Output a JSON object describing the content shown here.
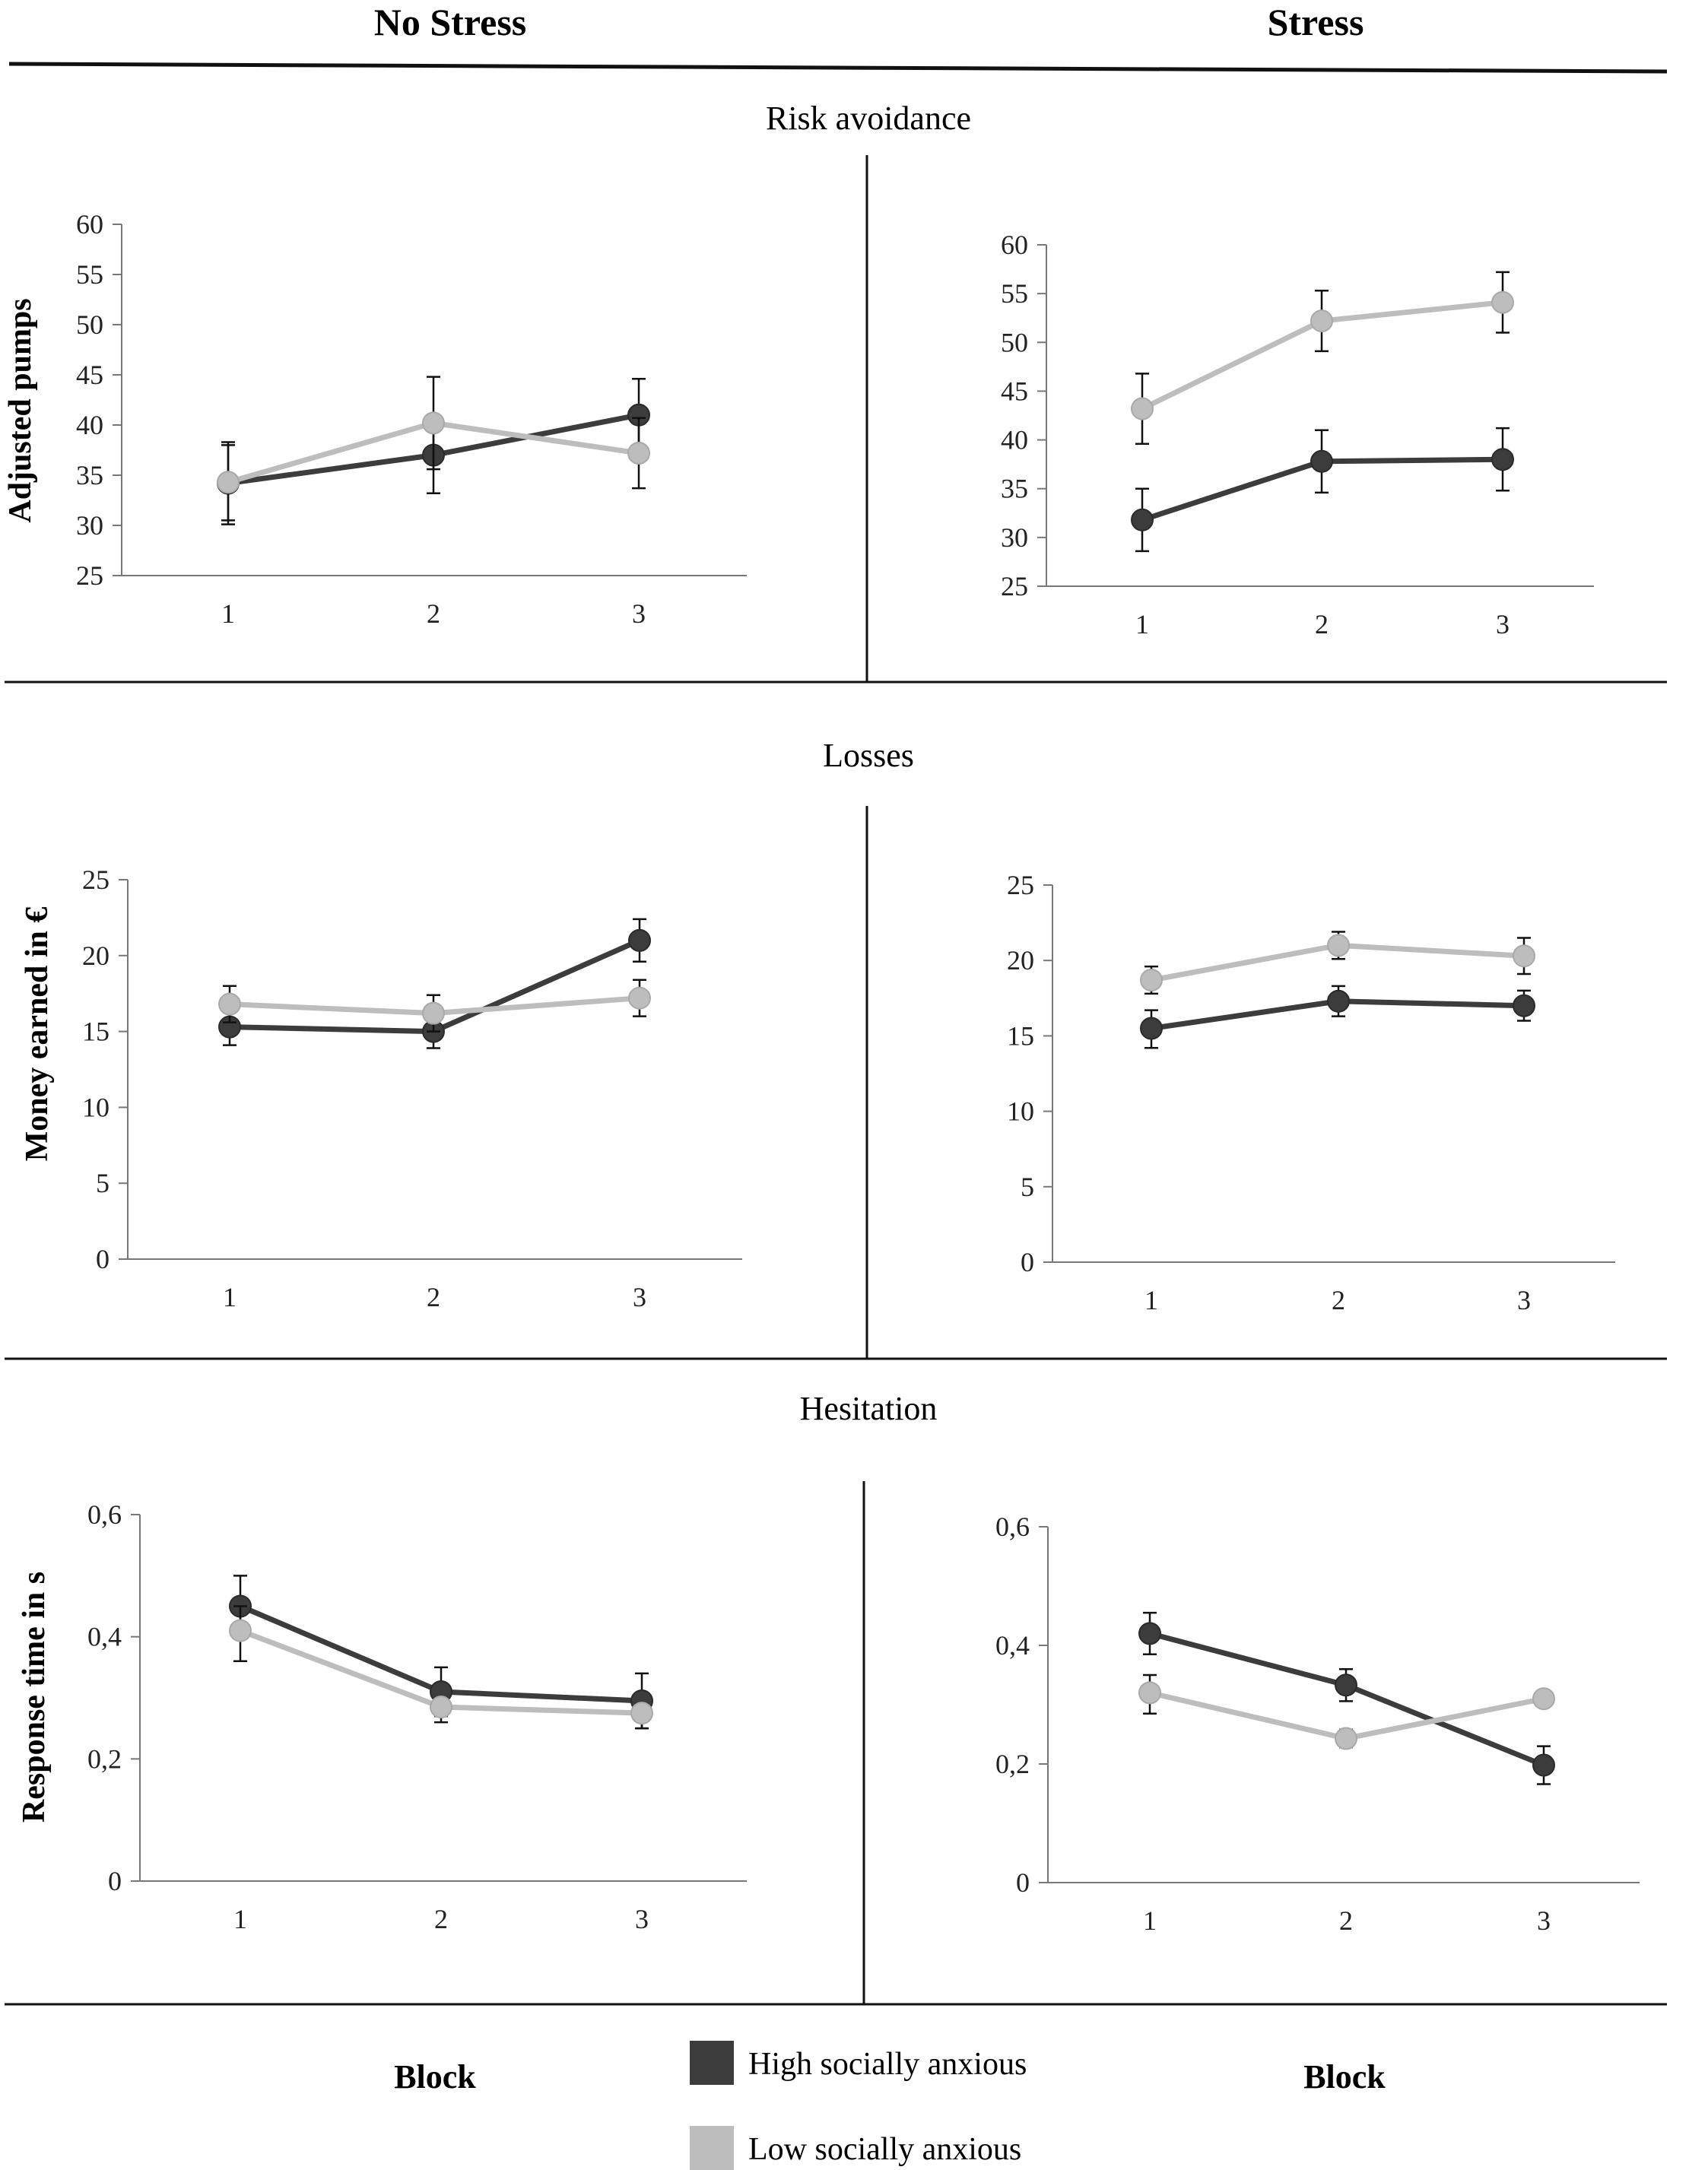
{
  "column_headers": [
    "No Stress",
    "Stress"
  ],
  "x_axis_label": "Block",
  "legend": [
    {
      "label": "High socially anxious",
      "color": "#3c3c3c"
    },
    {
      "label": "Low socially anxious",
      "color": "#bdbdbd"
    }
  ],
  "chart_data": [
    {
      "type": "line",
      "row_title": "Risk avoidance",
      "condition": "No Stress",
      "ylabel": "Adjusted pumps",
      "ylim": [
        25,
        60
      ],
      "yticks": [
        25,
        30,
        35,
        40,
        45,
        50,
        55,
        60
      ],
      "categories": [
        "1",
        "2",
        "3"
      ],
      "series": [
        {
          "name": "High socially anxious",
          "values": [
            34.2,
            37.0,
            41.0
          ],
          "error_upper": [
            38.3,
            40.8,
            44.6
          ],
          "error_lower": [
            30.1,
            33.2,
            37.4
          ]
        },
        {
          "name": "Low socially anxious",
          "values": [
            34.3,
            40.2,
            37.2
          ],
          "error_upper": [
            38.0,
            44.8,
            40.7
          ],
          "error_lower": [
            30.5,
            35.6,
            33.7
          ]
        }
      ]
    },
    {
      "type": "line",
      "row_title": "Risk avoidance",
      "condition": "Stress",
      "ylabel": "",
      "ylim": [
        25,
        60
      ],
      "yticks": [
        25,
        30,
        35,
        40,
        45,
        50,
        55,
        60
      ],
      "categories": [
        "1",
        "2",
        "3"
      ],
      "series": [
        {
          "name": "High socially anxious",
          "values": [
            31.8,
            37.8,
            38.0
          ],
          "error_upper": [
            35.0,
            41.0,
            41.2
          ],
          "error_lower": [
            28.6,
            34.6,
            34.8
          ]
        },
        {
          "name": "Low socially anxious",
          "values": [
            43.2,
            52.2,
            54.1
          ],
          "error_upper": [
            46.8,
            55.3,
            57.2
          ],
          "error_lower": [
            39.6,
            49.1,
            51.0
          ]
        }
      ]
    },
    {
      "type": "line",
      "row_title": "Losses",
      "condition": "No Stress",
      "ylabel": "Money earned in €",
      "ylim": [
        0,
        25
      ],
      "yticks": [
        0,
        5,
        10,
        15,
        20,
        25
      ],
      "categories": [
        "1",
        "2",
        "3"
      ],
      "series": [
        {
          "name": "High socially anxious",
          "values": [
            15.3,
            15.0,
            21.0
          ],
          "error_upper": [
            16.5,
            16.1,
            22.4
          ],
          "error_lower": [
            14.1,
            13.9,
            19.6
          ]
        },
        {
          "name": "Low socially anxious",
          "values": [
            16.8,
            16.2,
            17.2
          ],
          "error_upper": [
            18.0,
            17.4,
            18.4
          ],
          "error_lower": [
            15.6,
            15.0,
            16.0
          ]
        }
      ]
    },
    {
      "type": "line",
      "row_title": "Losses",
      "condition": "Stress",
      "ylabel": "",
      "ylim": [
        0,
        25
      ],
      "yticks": [
        0,
        5,
        10,
        15,
        20,
        25
      ],
      "categories": [
        "1",
        "2",
        "3"
      ],
      "series": [
        {
          "name": "High socially anxious",
          "values": [
            15.5,
            17.3,
            17.0
          ],
          "error_upper": [
            16.7,
            18.3,
            18.0
          ],
          "error_lower": [
            14.2,
            16.3,
            16.0
          ]
        },
        {
          "name": "Low socially anxious",
          "values": [
            18.7,
            21.0,
            20.3
          ],
          "error_upper": [
            19.6,
            21.9,
            21.5
          ],
          "error_lower": [
            17.8,
            20.1,
            19.1
          ]
        }
      ]
    },
    {
      "type": "line",
      "row_title": "Hesitation",
      "condition": "No Stress",
      "ylabel": "Response time in s",
      "ylim": [
        0,
        0.6
      ],
      "yticks": [
        0,
        0.2,
        0.4,
        0.6
      ],
      "tick_labels": [
        "0",
        "0,2",
        "0,4",
        "0,6"
      ],
      "categories": [
        "1",
        "2",
        "3"
      ],
      "series": [
        {
          "name": "High socially anxious",
          "values": [
            0.45,
            0.31,
            0.295
          ],
          "error_upper": [
            0.5,
            0.35,
            0.34
          ],
          "error_lower": [
            0.4,
            0.27,
            0.25
          ]
        },
        {
          "name": "Low socially anxious",
          "values": [
            0.41,
            0.285,
            0.275
          ],
          "error_upper": [
            0.45,
            0.3,
            0.29
          ],
          "error_lower": [
            0.36,
            0.26,
            0.25
          ]
        }
      ]
    },
    {
      "type": "line",
      "row_title": "Hesitation",
      "condition": "Stress",
      "ylabel": "",
      "ylim": [
        0,
        0.6
      ],
      "yticks": [
        0,
        0.2,
        0.4,
        0.6
      ],
      "tick_labels": [
        "0",
        "0,2",
        "0,4",
        "0,6"
      ],
      "categories": [
        "1",
        "2",
        "3"
      ],
      "series": [
        {
          "name": "High socially anxious",
          "values": [
            0.42,
            0.333,
            0.198
          ],
          "error_upper": [
            0.455,
            0.36,
            0.23
          ],
          "error_lower": [
            0.385,
            0.306,
            0.166
          ]
        },
        {
          "name": "Low socially anxious",
          "values": [
            0.32,
            0.243,
            0.31
          ],
          "error_upper": [
            0.35,
            0.258,
            0.32
          ],
          "error_lower": [
            0.285,
            0.228,
            0.3
          ]
        }
      ]
    }
  ]
}
